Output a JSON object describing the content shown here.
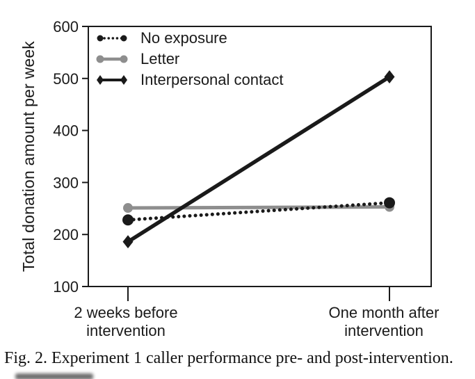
{
  "caption": "Fig. 2. Experiment 1 caller performance pre- and post-intervention.",
  "colors": {
    "black": "#1a1a1a",
    "gray": "#8e8e8e",
    "text": "#1a1a1a",
    "background": "#ffffff"
  },
  "chart_data": {
    "type": "line",
    "title": "",
    "xlabel": "",
    "ylabel": "Total donation amount per week",
    "categories": [
      "2 weeks before\nintervention",
      "One month after\nintervention"
    ],
    "ylim": [
      100,
      600
    ],
    "yticks": [
      100,
      200,
      300,
      400,
      500,
      600
    ],
    "grid": false,
    "legend_position": "top-left-inside",
    "series": [
      {
        "name": "No exposure",
        "values": [
          228,
          261
        ],
        "color": "#1a1a1a",
        "style": "dotted",
        "marker": "circle"
      },
      {
        "name": "Letter",
        "values": [
          251,
          253
        ],
        "color": "#8e8e8e",
        "style": "solid",
        "marker": "circle"
      },
      {
        "name": "Interpersonal contact",
        "values": [
          186,
          503
        ],
        "color": "#1a1a1a",
        "style": "solid",
        "marker": "diamond"
      }
    ]
  }
}
